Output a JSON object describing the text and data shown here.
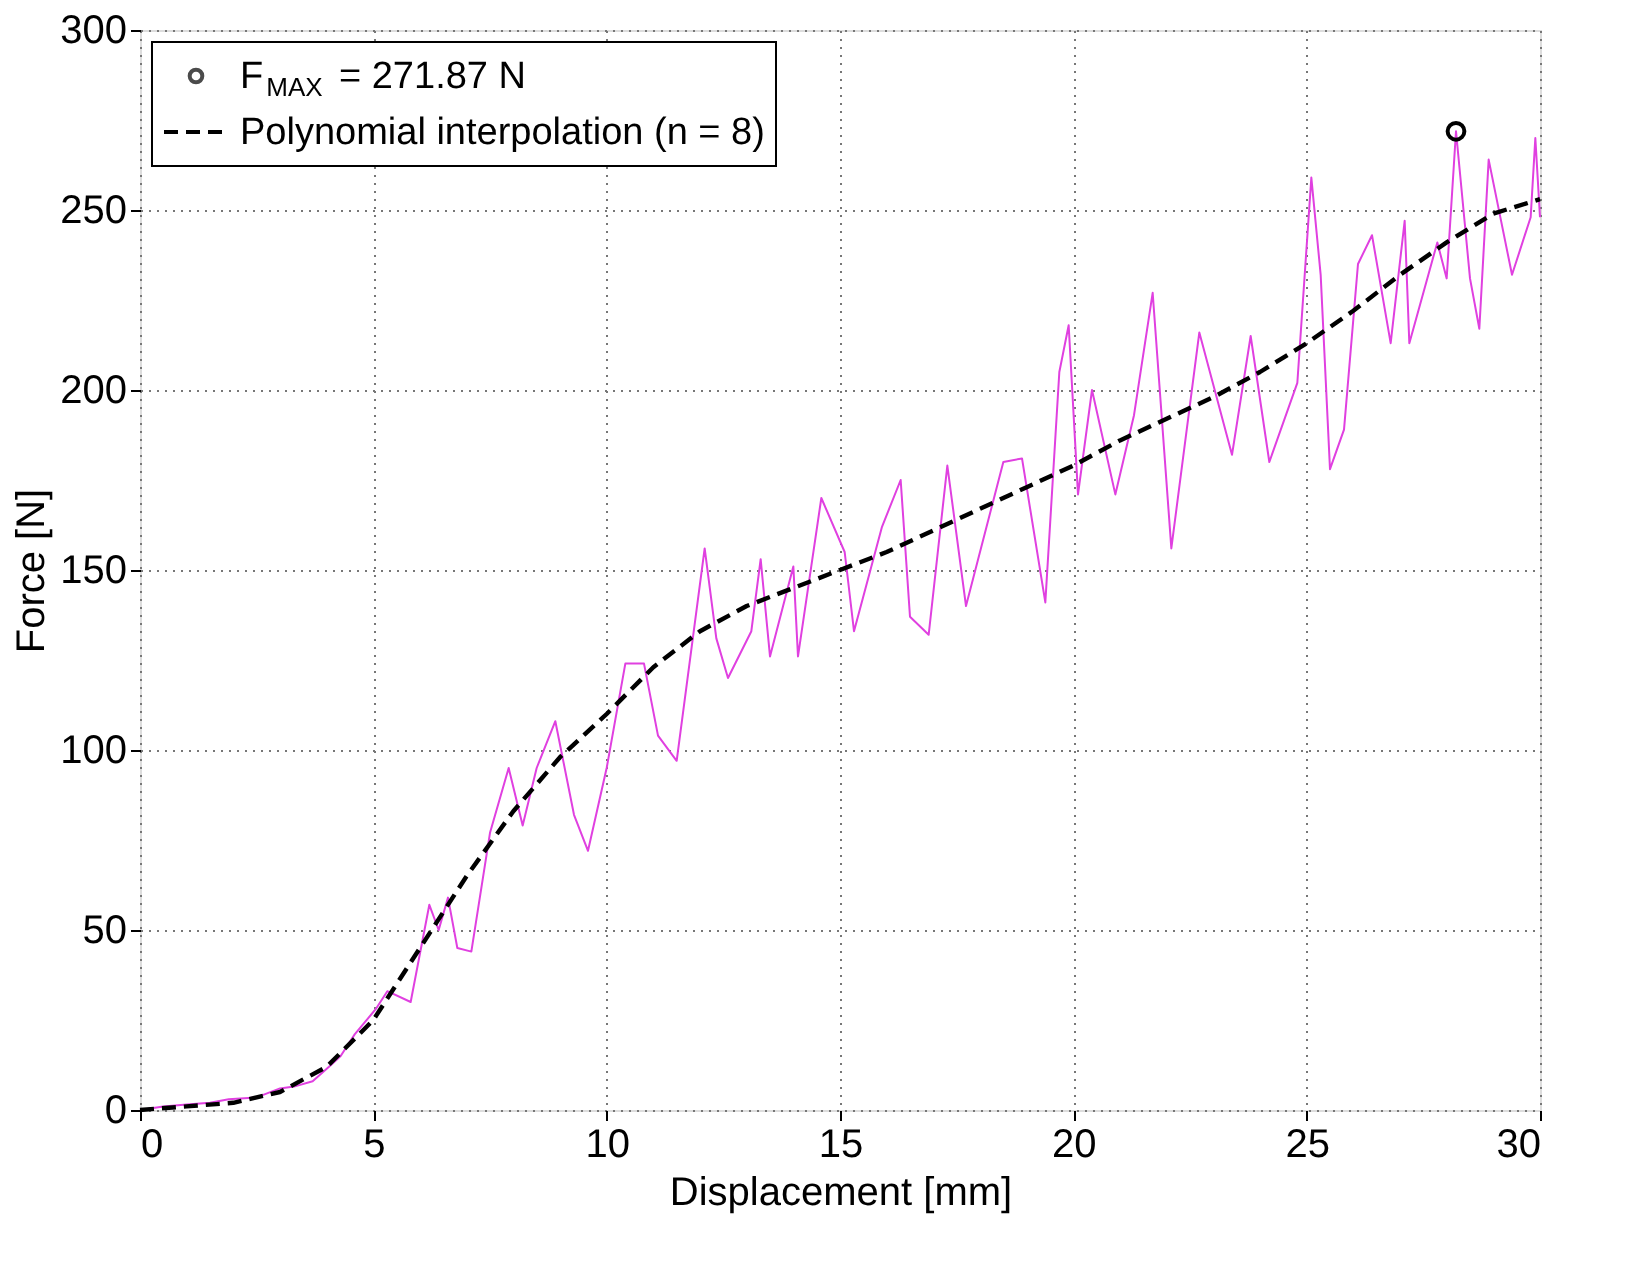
{
  "chart_data": {
    "type": "line",
    "xlabel": "Displacement [mm]",
    "ylabel": "Force [N]",
    "xlim": [
      0,
      30
    ],
    "ylim": [
      0,
      300
    ],
    "xticks": [
      0,
      5,
      10,
      15,
      20,
      25,
      30
    ],
    "yticks": [
      0,
      50,
      100,
      150,
      200,
      250,
      300
    ],
    "grid": true,
    "legend": "top left",
    "series": [
      {
        "color": "#e040e0",
        "x": [
          0,
          0.5,
          1,
          1.5,
          1.9,
          2.5,
          3.0,
          3.3,
          3.7,
          4.05,
          4.3,
          4.6,
          5.05,
          5.3,
          5.8,
          6.2,
          6.4,
          6.6,
          6.8,
          7.1,
          7.5,
          7.9,
          8.2,
          8.5,
          8.9,
          9.3,
          9.6,
          10.0,
          10.4,
          10.8,
          11.1,
          11.5,
          12.1,
          12.35,
          12.6,
          13.1,
          13.3,
          13.5,
          14.0,
          14.1,
          14.6,
          15.1,
          15.3,
          15.9,
          16.3,
          16.5,
          16.9,
          17.3,
          17.7,
          18.5,
          18.9,
          19.4,
          19.7,
          19.9,
          20.1,
          20.4,
          20.9,
          21.3,
          21.7,
          22.1,
          22.7,
          23.4,
          23.8,
          24.2,
          24.8,
          25.1,
          25.3,
          25.5,
          25.8,
          26.1,
          26.4,
          26.8,
          27.1,
          27.2,
          27.8,
          28.0,
          28.2,
          28.5,
          28.7,
          28.9,
          29.4,
          29.8,
          29.9,
          30
        ],
        "values": [
          0,
          1,
          1.5,
          2,
          3,
          3.5,
          6,
          6.5,
          8,
          12,
          15,
          21,
          28,
          33,
          30,
          57,
          50,
          59,
          45,
          44,
          77,
          95,
          79,
          95,
          108,
          82,
          72,
          95,
          124,
          124,
          104,
          97,
          156,
          131,
          120,
          133,
          153,
          126,
          151,
          126,
          170,
          155,
          133,
          162,
          175,
          137,
          132,
          179,
          140,
          180,
          181,
          141,
          205,
          218,
          171,
          200,
          171,
          193,
          227,
          156,
          216,
          182,
          215,
          180,
          202,
          259,
          232,
          178,
          189,
          235,
          243,
          213,
          247,
          213,
          241,
          231,
          271.87,
          231,
          217,
          264,
          232,
          248,
          270,
          248
        ]
      },
      {
        "name": "F$_{MAX}$ = 271.87 N",
        "type": "scatter",
        "marker": "circle",
        "color": "#000000",
        "x": [
          28.2
        ],
        "values": [
          271.87
        ]
      },
      {
        "name": "Polynomial interpolation (n = 8)",
        "type": "line",
        "line_style": "dashed",
        "color": "#000000",
        "x": [
          0,
          1,
          2,
          3,
          4,
          5,
          6,
          7,
          8,
          9,
          10,
          11,
          12,
          13,
          14,
          15,
          16,
          17,
          18,
          19,
          20,
          21,
          22,
          23,
          24,
          25,
          26,
          27,
          28,
          29,
          30
        ],
        "values": [
          0,
          1,
          2,
          5,
          12,
          25,
          45,
          65,
          83,
          98,
          110,
          123,
          133,
          140,
          145,
          150,
          155,
          161,
          167,
          173,
          179,
          186,
          192,
          198,
          205,
          213,
          222,
          232,
          241,
          249,
          253
        ]
      }
    ]
  }
}
